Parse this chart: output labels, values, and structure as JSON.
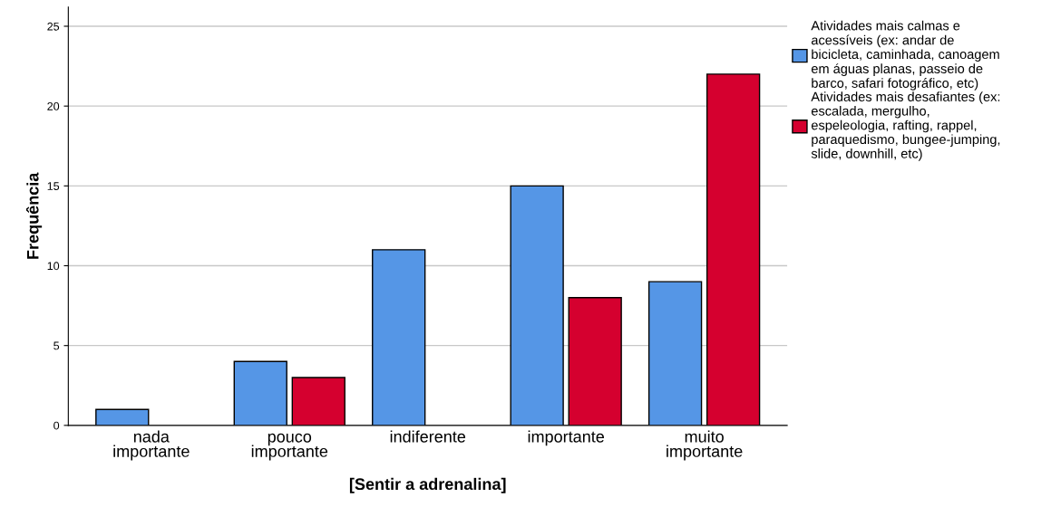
{
  "chart_data": {
    "type": "bar",
    "xlabel": "[Sentir a adrenalina]",
    "ylabel": "Frequência",
    "categories": [
      "nada\nimportante",
      "pouco\nimportante",
      "indiferente",
      "importante",
      "muito\nimportante"
    ],
    "series": [
      {
        "name": "Atividades mais calmas e\nacessíveis (ex: andar de\nbicicleta, caminhada, canoagem\nem águas planas, passeio de\nbarco, safari fotográfico, etc)",
        "color": "#5596e6",
        "values": [
          1,
          4,
          11,
          15,
          9
        ]
      },
      {
        "name": "Atividades mais desafiantes (ex:\nescalada, mergulho,\nespeleologia, rafting, rappel,\nparaquedismo, bungee-jumping,\nslide, downhill, etc)",
        "color": "#d5002f",
        "values": [
          null,
          3,
          null,
          8,
          22
        ]
      }
    ],
    "ylim": [
      0,
      26.2
    ],
    "yticks": [
      0,
      5,
      10,
      15,
      20,
      25
    ],
    "grid": "y",
    "legend": "right"
  }
}
